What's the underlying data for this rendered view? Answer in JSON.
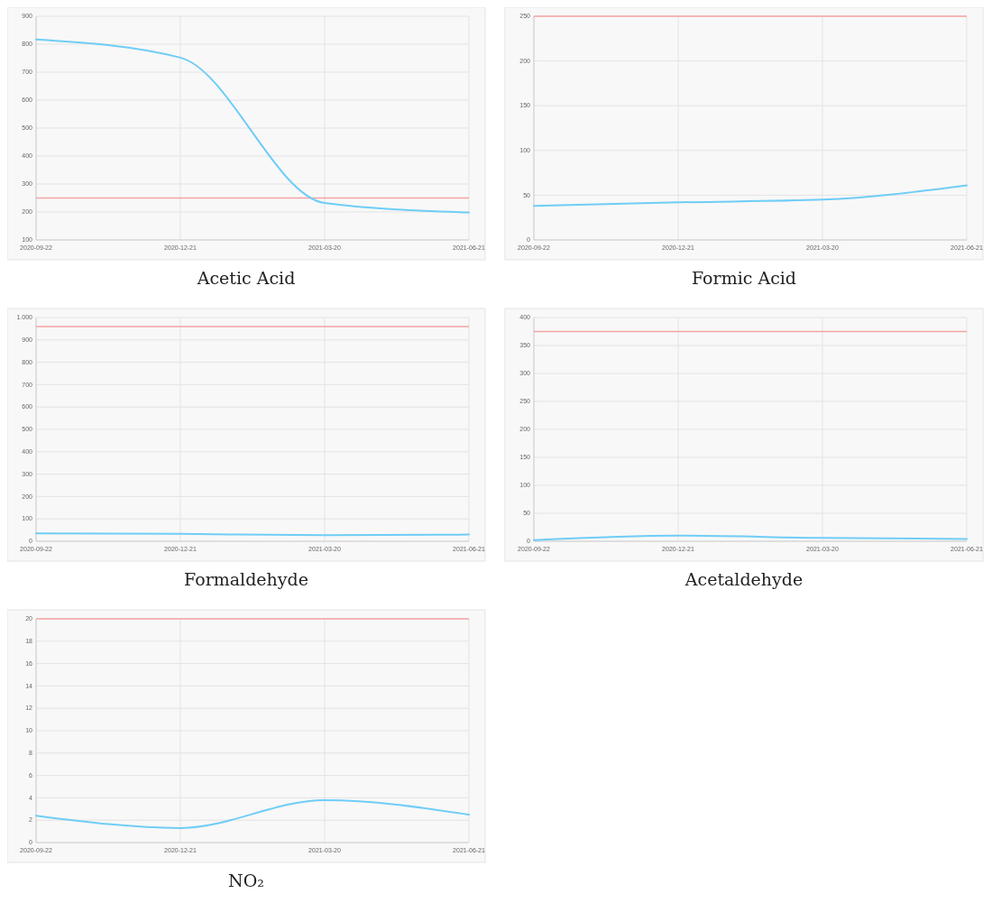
{
  "chart_data": [
    {
      "type": "line",
      "title": "Acetic Acid",
      "categories": [
        "2020-09-22",
        "2020-12-21",
        "2021-03-20",
        "2021-06-21"
      ],
      "series": [
        {
          "color": "#6fcdf6",
          "values": [
            817,
            752,
            232,
            198
          ]
        }
      ],
      "ylim": [
        100,
        900
      ],
      "yticks": [
        100,
        200,
        300,
        400,
        500,
        600,
        700,
        800,
        900
      ],
      "ref_lines": [
        {
          "axis": "y",
          "value": 250,
          "color": "#f4a3a3"
        }
      ],
      "grid": true
    },
    {
      "type": "line",
      "title": "Formic Acid",
      "categories": [
        "2020-09-22",
        "2020-12-21",
        "2021-03-20",
        "2021-06-21"
      ],
      "series": [
        {
          "color": "#6fcdf6",
          "values": [
            38,
            42,
            45,
            61
          ]
        }
      ],
      "ylim": [
        0,
        250
      ],
      "yticks": [
        0,
        50,
        100,
        150,
        200,
        250
      ],
      "ref_lines": [
        {
          "axis": "y",
          "value": 250,
          "color": "#f4a3a3"
        }
      ],
      "grid": true
    },
    {
      "type": "line",
      "title": "Formaldehyde",
      "categories": [
        "2020-09-22",
        "2020-12-21",
        "2021-03-20",
        "2021-06-21"
      ],
      "series": [
        {
          "color": "#6fcdf6",
          "values": [
            35,
            33,
            27,
            30
          ]
        }
      ],
      "ylim": [
        0,
        1000
      ],
      "yticks": [
        0,
        100,
        200,
        300,
        400,
        500,
        600,
        700,
        800,
        900,
        {
          "value": 1000,
          "label": "1.000"
        }
      ],
      "ref_lines": [
        {
          "axis": "y",
          "value": 960,
          "color": "#f4a3a3"
        }
      ],
      "grid": true
    },
    {
      "type": "line",
      "title": "Acetaldehyde",
      "categories": [
        "2020-09-22",
        "2020-12-21",
        "2021-03-20",
        "2021-06-21"
      ],
      "series": [
        {
          "color": "#6fcdf6",
          "values": [
            2,
            10,
            6,
            4
          ]
        }
      ],
      "ylim": [
        0,
        400
      ],
      "yticks": [
        0,
        50,
        100,
        150,
        200,
        250,
        300,
        350,
        400
      ],
      "ref_lines": [
        {
          "axis": "y",
          "value": 375,
          "color": "#f4a3a3"
        }
      ],
      "grid": true
    },
    {
      "type": "line",
      "title": "NO₂",
      "categories": [
        "2020-09-22",
        "2020-12-21",
        "2021-03-20",
        "2021-06-21"
      ],
      "series": [
        {
          "color": "#6fcdf6",
          "values": [
            2.4,
            1.3,
            3.8,
            2.5
          ]
        }
      ],
      "ylim": [
        0,
        20
      ],
      "yticks": [
        0,
        2,
        4,
        6,
        8,
        10,
        12,
        14,
        16,
        18,
        20
      ],
      "ref_lines": [
        {
          "axis": "y",
          "value": 20,
          "color": "#f4a3a3"
        }
      ],
      "grid": true
    }
  ]
}
